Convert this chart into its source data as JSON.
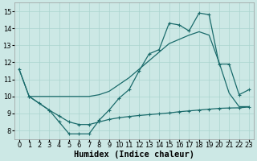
{
  "xlabel": "Humidex (Indice chaleur)",
  "background_color": "#cce8e5",
  "grid_color": "#aad4cf",
  "line_color": "#1a6b6b",
  "xlim": [
    -0.5,
    23.5
  ],
  "ylim": [
    7.5,
    15.5
  ],
  "xticks": [
    0,
    1,
    2,
    3,
    4,
    5,
    6,
    7,
    8,
    9,
    10,
    11,
    12,
    13,
    14,
    15,
    16,
    17,
    18,
    19,
    20,
    21,
    22,
    23
  ],
  "yticks": [
    8,
    9,
    10,
    11,
    12,
    13,
    14,
    15
  ],
  "line1_x": [
    0,
    1,
    2,
    3,
    4,
    5,
    6,
    7,
    8,
    9,
    10,
    11,
    12,
    13,
    14,
    15,
    16,
    17,
    18,
    19,
    20,
    21,
    22,
    23
  ],
  "line1_y": [
    11.6,
    10.0,
    10.0,
    10.0,
    10.0,
    10.0,
    10.0,
    10.0,
    10.1,
    10.3,
    10.7,
    11.1,
    11.6,
    12.1,
    12.6,
    13.1,
    13.35,
    13.6,
    13.8,
    13.6,
    12.0,
    10.2,
    9.4,
    9.4
  ],
  "line2_x": [
    0,
    1,
    3,
    4,
    5,
    6,
    7,
    8,
    9,
    10,
    11,
    12,
    13,
    14,
    15,
    16,
    17,
    18,
    19,
    20,
    21,
    22,
    23
  ],
  "line2_y": [
    11.6,
    10.0,
    9.2,
    8.5,
    7.8,
    7.8,
    7.8,
    8.6,
    9.2,
    9.9,
    10.4,
    11.5,
    12.5,
    12.75,
    14.3,
    14.2,
    13.85,
    14.9,
    14.8,
    11.9,
    11.9,
    10.1,
    10.4
  ],
  "line3_x": [
    1,
    2,
    3,
    4,
    5,
    6,
    7,
    8,
    9,
    10,
    11,
    12,
    13,
    14,
    15,
    16,
    17,
    18,
    19,
    20,
    21,
    22,
    23
  ],
  "line3_y": [
    10.0,
    9.6,
    9.2,
    8.85,
    8.5,
    8.35,
    8.35,
    8.5,
    8.65,
    8.75,
    8.82,
    8.88,
    8.93,
    8.98,
    9.03,
    9.1,
    9.15,
    9.2,
    9.25,
    9.3,
    9.32,
    9.33,
    9.38
  ],
  "marker_size": 3.5,
  "line_width": 0.9,
  "xlabel_fontsize": 7.5,
  "tick_fontsize": 6.0
}
